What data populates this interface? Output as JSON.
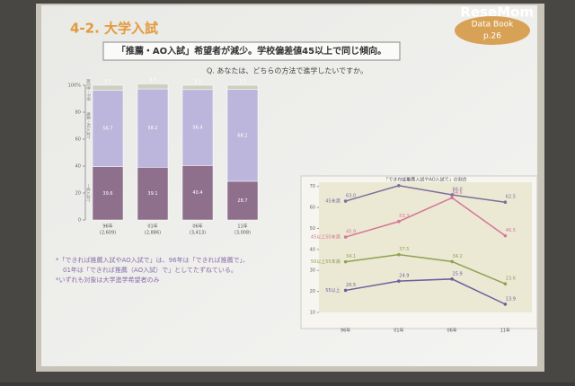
{
  "logo": "ReseMom",
  "slide_title": "4-2. 大学入試",
  "badge": [
    "Data Book",
    "p.26"
  ],
  "headline": "「推薦・AO入試」希望者が減少。学校偏差値45以上で同じ傾向。",
  "question": "Q. あなたは、どちらの方法で進学したいですか。",
  "notes": [
    "*「できれば推薦入試やAO入試で」は、96年は「できれば推薦で」、",
    "01年は「できれば推薦（AO入試）で」としてたずねている。",
    "*いずれも対象は大学進学希望者のみ"
  ],
  "chart_data": [
    {
      "type": "bar",
      "stacked": true,
      "categories": [
        "96年",
        "01年",
        "06年",
        "11年"
      ],
      "category_notes": [
        "(2,609)",
        "(2,886)",
        "(3,413)",
        "(3,008)"
      ],
      "series": [
        {
          "name": "一般入試で",
          "color": "#8e6f8c",
          "values": [
            39.6,
            39.1,
            40.4,
            28.7
          ]
        },
        {
          "name": "推薦・AO入試で",
          "color": "#bdb6dc",
          "values": [
            56.7,
            58.2,
            56.4,
            68.2
          ]
        },
        {
          "name": "無回答・不明",
          "color": "#cfcfc0",
          "values": [
            3.7,
            3.7,
            3.2,
            3.1
          ]
        }
      ],
      "ylim": [
        0,
        100
      ],
      "yticks": [
        0,
        20,
        40,
        60,
        80,
        {
          "value": 100,
          "label": "100%"
        }
      ]
    },
    {
      "type": "line",
      "title": "「できれば推薦入試やAO入試で」の割合",
      "categories": [
        "96年",
        "01年",
        "06年",
        "11年"
      ],
      "series": [
        {
          "name": "45未満",
          "color": "#7d6f9c",
          "values": [
            63,
            70.4,
            66,
            62.5
          ],
          "value_labels": [
            "63.0",
            "70.4",
            "66.0",
            "62.5"
          ]
        },
        {
          "name": "45以上50未満",
          "color": "#d77595",
          "values": [
            45.9,
            53.3,
            64.6,
            46.5
          ]
        },
        {
          "name": "50以上55未満",
          "color": "#8ea352",
          "values": [
            34.1,
            37.5,
            34.2,
            23.6
          ]
        },
        {
          "name": "55以上",
          "color": "#6d5f9e",
          "values": [
            20.5,
            24.9,
            25.9,
            13.9
          ]
        }
      ],
      "ylim": [
        10,
        72
      ],
      "yticks": [
        10,
        20,
        30,
        40,
        50,
        60,
        70
      ]
    }
  ]
}
